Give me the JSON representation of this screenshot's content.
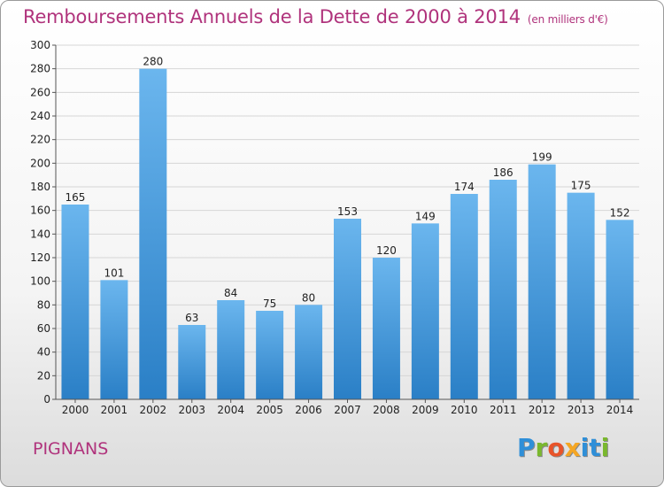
{
  "title": "Remboursements Annuels de la Dette de 2000 à 2014",
  "unit": "(en milliers d'€)",
  "commune": "PIGNANS",
  "logo": {
    "text": "Proxiti",
    "colors": [
      "#2f8fd8",
      "#7ab82e",
      "#e8542a",
      "#f5a623",
      "#2f8fd8",
      "#2f8fd8",
      "#7ab82e"
    ]
  },
  "colors": {
    "bar_light": "#6bb6ee",
    "bar_dark": "#2a7fc6",
    "title": "#b0337c"
  },
  "chart_data": {
    "type": "bar",
    "categories": [
      "2000",
      "2001",
      "2002",
      "2003",
      "2004",
      "2005",
      "2006",
      "2007",
      "2008",
      "2009",
      "2010",
      "2011",
      "2012",
      "2013",
      "2014"
    ],
    "values": [
      165,
      101,
      280,
      63,
      84,
      75,
      80,
      153,
      120,
      149,
      174,
      186,
      199,
      175,
      152
    ],
    "title": "Remboursements Annuels de la Dette de 2000 à 2014",
    "ylim": [
      0,
      300
    ],
    "yticks": [
      0,
      20,
      40,
      60,
      80,
      100,
      120,
      140,
      160,
      180,
      200,
      220,
      240,
      260,
      280,
      300
    ],
    "grid": true
  }
}
